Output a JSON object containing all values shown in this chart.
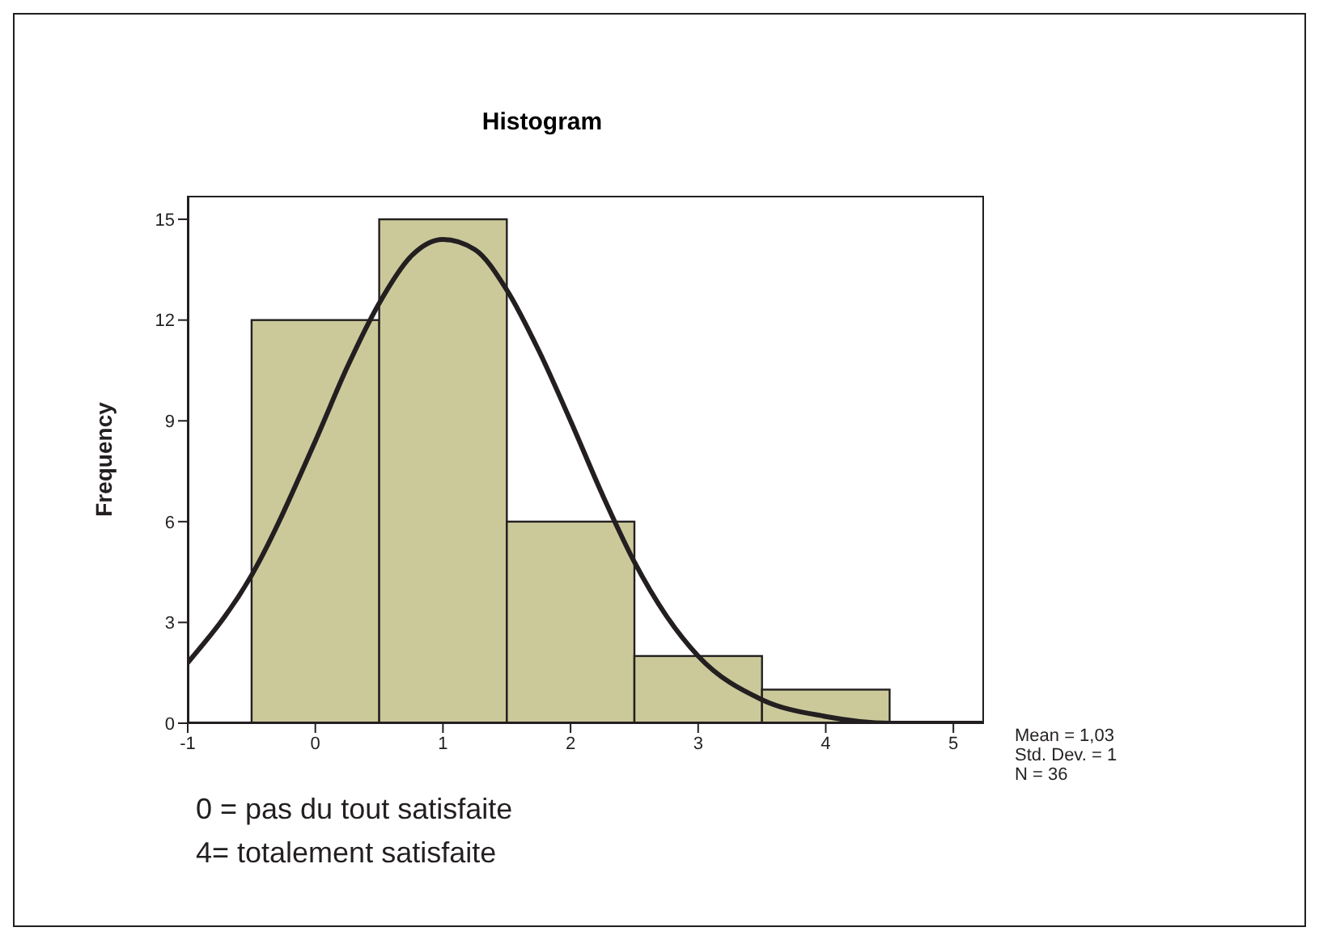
{
  "chart_data": {
    "type": "histogram",
    "title": "Histogram",
    "ylabel": "Frequency",
    "bins": [
      -0.5,
      0.5,
      1.5,
      2.5,
      3.5,
      4.5
    ],
    "values": [
      12,
      15,
      6,
      2,
      1
    ],
    "color": "#cbc99a",
    "series": [
      {
        "type": "line",
        "color": "#231f20",
        "x": [
          -1,
          -0.5,
          0,
          0.25,
          0.5,
          0.75,
          1,
          1.25,
          1.5,
          1.75,
          2,
          2.25,
          2.5,
          2.75,
          3,
          3.5,
          4,
          4.5,
          5,
          5.24
        ],
        "values": [
          1.8,
          4.4,
          8.4,
          10.6,
          12.5,
          13.9,
          14.4,
          14.1,
          12.9,
          11.1,
          9.0,
          6.8,
          4.8,
          3.2,
          2.0,
          0.7,
          0.2,
          0.0,
          0.0,
          0.0
        ]
      }
    ],
    "xlim": [
      -1,
      5.24
    ],
    "xticks": [
      -1,
      0,
      1,
      2,
      3,
      4,
      5
    ],
    "ylim": [
      0,
      15.7
    ],
    "yticks": [
      0,
      3,
      6,
      9,
      12,
      15
    ],
    "annotations": [
      "Mean = 1,03",
      "Std. Dev. = 1",
      "N = 36",
      "0 = pas du tout satisfaite",
      "4= totalement satisfaite"
    ]
  }
}
